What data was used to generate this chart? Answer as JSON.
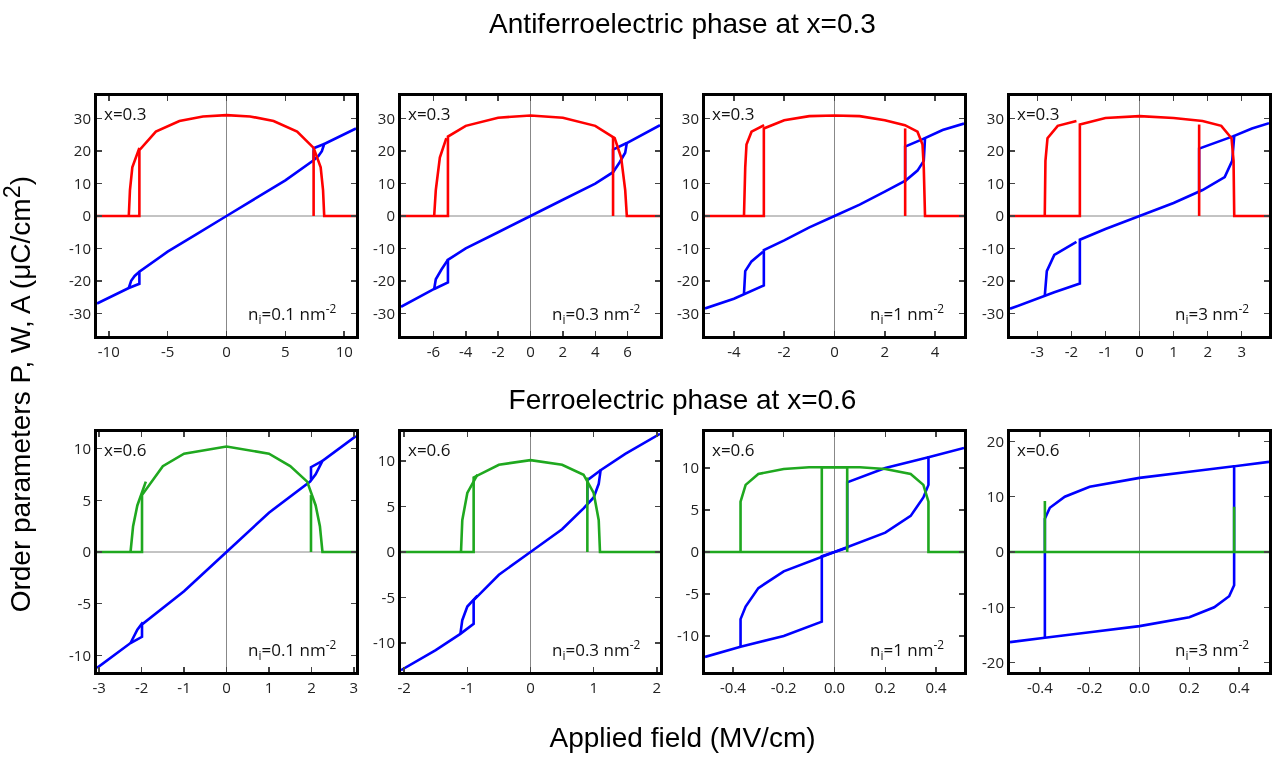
{
  "chart_data": [
    {
      "type": "line",
      "annotations": [
        "x=0.3",
        "n$_{i}$=0.1 nm$^{-2}$"
      ],
      "xlim": [
        -11,
        11
      ],
      "ylim": [
        -37,
        37
      ],
      "xticks": [
        -10,
        -5,
        0,
        5,
        10
      ],
      "yticks": [
        -30,
        -20,
        -10,
        0,
        10,
        20,
        30
      ],
      "ref_lines": [
        {
          "axis": "x",
          "value": 0,
          "color": "#888888"
        },
        {
          "axis": "y",
          "value": 0,
          "color": "#888888"
        }
      ],
      "series": [
        {
          "color": "#0000ff",
          "x": [
            -11,
            -8.3,
            -7.4,
            -7.4,
            -5,
            -2.5,
            0,
            2.5,
            5,
            7.4,
            7.8,
            8.1,
            8.3,
            11
          ],
          "values": [
            -27,
            -22.2,
            -20.9,
            -17.2,
            -11,
            -5.5,
            0,
            5.5,
            11,
            17.2,
            18.5,
            20,
            22.2,
            27
          ]
        },
        {
          "color": "#0000ff",
          "x": [
            -8.3,
            -8.1,
            -7.8,
            -7.4,
            0,
            7.4,
            7.4,
            8.3
          ],
          "values": [
            -22.2,
            -20,
            -18.5,
            -17.2,
            null,
            17.2,
            20.9,
            22.2
          ]
        },
        {
          "color": "#ff0000",
          "x": [
            -11,
            -7.4,
            -7.4,
            -6,
            -4,
            -2,
            0,
            2,
            4,
            6,
            7.4,
            8,
            8.2,
            8.3,
            11
          ],
          "values": [
            0,
            0,
            20.3,
            26,
            29.3,
            30.7,
            31.1,
            30.7,
            29.3,
            26,
            21,
            15,
            8,
            0,
            0
          ]
        },
        {
          "color": "#ff0000",
          "x": [
            -8.3,
            -8.2,
            -8,
            -7.4,
            0,
            7.4,
            7.4
          ],
          "values": [
            0,
            8,
            15,
            21,
            null,
            20.3,
            0
          ]
        }
      ]
    },
    {
      "type": "line",
      "annotations": [
        "x=0.3",
        "n$_{i}$=0.3 nm$^{-2}$"
      ],
      "xlim": [
        -8,
        8
      ],
      "ylim": [
        -37,
        37
      ],
      "xticks": [
        -6,
        -4,
        -2,
        0,
        2,
        4,
        6
      ],
      "yticks": [
        -30,
        -20,
        -10,
        0,
        10,
        20,
        30
      ],
      "ref_lines": [
        {
          "axis": "x",
          "value": 0,
          "color": "#888888"
        },
        {
          "axis": "y",
          "value": 0,
          "color": "#888888"
        }
      ],
      "series": [
        {
          "color": "#0000ff",
          "x": [
            -8,
            -5.95,
            -5.1,
            -5.1,
            -4,
            -2,
            0,
            2,
            4,
            5.1,
            5.5,
            5.85,
            5.95,
            8
          ],
          "values": [
            -28,
            -22.5,
            -20.5,
            -13.5,
            -10,
            -5,
            0,
            5,
            10,
            13.5,
            16.5,
            19.5,
            22.5,
            28
          ]
        },
        {
          "color": "#0000ff",
          "x": [
            -5.95,
            -5.85,
            -5.5,
            -5.1,
            0,
            5.1,
            5.1,
            5.95
          ],
          "values": [
            -22.5,
            -19.5,
            -16.5,
            -13.5,
            null,
            13.5,
            20.5,
            22.5
          ]
        },
        {
          "color": "#ff0000",
          "x": [
            -8,
            -5.1,
            -5.1,
            -4,
            -2,
            0,
            2,
            4,
            5.2,
            5.6,
            5.85,
            5.95,
            8
          ],
          "values": [
            0,
            0,
            24.5,
            27.8,
            30.3,
            31,
            30.3,
            27.8,
            24,
            18,
            8,
            0,
            0
          ]
        },
        {
          "color": "#ff0000",
          "x": [
            -5.95,
            -5.85,
            -5.6,
            -5.2,
            0,
            5.1,
            5.1
          ],
          "values": [
            0,
            8,
            18,
            24,
            null,
            24.5,
            0
          ]
        }
      ]
    },
    {
      "type": "line",
      "annotations": [
        "x=0.3",
        "n$_{i}$=1 nm$^{-2}$"
      ],
      "xlim": [
        -5.15,
        5.15
      ],
      "ylim": [
        -37,
        37
      ],
      "xticks": [
        -4,
        -2,
        0,
        2,
        4
      ],
      "yticks": [
        -30,
        -20,
        -10,
        0,
        10,
        20,
        30
      ],
      "ref_lines": [
        {
          "axis": "x",
          "value": 0,
          "color": "#888888"
        },
        {
          "axis": "y",
          "value": 0,
          "color": "#888888"
        }
      ],
      "series": [
        {
          "color": "#0000ff",
          "x": [
            -5.15,
            -4,
            -2.81,
            -2.81,
            -2,
            -1,
            0,
            1,
            2,
            2.84,
            3.3,
            3.55,
            3.6,
            4.3,
            5.15
          ],
          "values": [
            -28.5,
            -25.5,
            -21.4,
            -10.5,
            -7.5,
            -3.5,
            0,
            3.5,
            7.5,
            11,
            14,
            17,
            24,
            26.5,
            28.5
          ]
        },
        {
          "color": "#0000ff",
          "x": [
            -3.6,
            -3.55,
            -3.3,
            -2.84,
            0,
            2.81,
            2.81,
            3.6
          ],
          "values": [
            -24,
            -17,
            -14,
            -11,
            null,
            10.5,
            21.4,
            24
          ]
        },
        {
          "color": "#ff0000",
          "x": [
            -5.15,
            -2.81,
            -2.81,
            -2,
            -1,
            0,
            1,
            2,
            2.8,
            3.3,
            3.5,
            3.55,
            3.6,
            5.15
          ],
          "values": [
            0,
            0,
            27,
            29.5,
            30.8,
            31,
            30.8,
            29.5,
            28,
            26,
            22,
            15,
            0,
            0
          ]
        },
        {
          "color": "#ff0000",
          "x": [
            -3.6,
            -3.55,
            -3.5,
            -3.3,
            -2.8,
            0,
            2.81,
            2.81
          ],
          "values": [
            0,
            15,
            22,
            26,
            28,
            null,
            27,
            0
          ]
        }
      ]
    },
    {
      "type": "line",
      "annotations": [
        "x=0.3",
        "n$_{i}$=3 nm$^{-2}$"
      ],
      "xlim": [
        -3.8,
        3.8
      ],
      "ylim": [
        -37,
        37
      ],
      "xticks": [
        -3,
        -2,
        -1,
        0,
        1,
        2,
        3
      ],
      "yticks": [
        -30,
        -20,
        -10,
        0,
        10,
        20,
        30
      ],
      "ref_lines": [
        {
          "axis": "x",
          "value": 0,
          "color": "#888888"
        },
        {
          "axis": "y",
          "value": 0,
          "color": "#888888"
        }
      ],
      "series": [
        {
          "color": "#0000ff",
          "x": [
            -3.8,
            -2.5,
            -1.75,
            -1.75,
            -1,
            0,
            1,
            1.85,
            2.5,
            2.72,
            2.78,
            3.3,
            3.8
          ],
          "values": [
            -28.6,
            -23.5,
            -20.8,
            -7.3,
            -4,
            0,
            4,
            8,
            12,
            17,
            24.7,
            27,
            28.6
          ]
        },
        {
          "color": "#0000ff",
          "x": [
            -2.78,
            -2.72,
            -2.5,
            -1.85,
            0,
            1.75,
            1.75,
            2.78
          ],
          "values": [
            -24.7,
            -17,
            -12,
            -8,
            null,
            7.3,
            20.8,
            24.7
          ]
        },
        {
          "color": "#ff0000",
          "x": [
            -3.8,
            -1.75,
            -1.75,
            -1,
            0,
            1,
            1.85,
            2.4,
            2.7,
            2.76,
            2.78,
            3.8
          ],
          "values": [
            0,
            0,
            28.2,
            30.2,
            30.8,
            30.2,
            29.3,
            27.8,
            24,
            17,
            0,
            0
          ]
        },
        {
          "color": "#ff0000",
          "x": [
            -2.78,
            -2.76,
            -2.7,
            -2.4,
            -1.85,
            0,
            1.75,
            1.75
          ],
          "values": [
            0,
            17,
            24,
            27.8,
            29.3,
            null,
            28.2,
            0
          ]
        }
      ]
    },
    {
      "type": "line",
      "annotations": [
        "x=0.6",
        "n$_{i}$=0.1 nm$^{-2}$"
      ],
      "xlim": [
        -3.05,
        3.05
      ],
      "ylim": [
        -11.6,
        11.6
      ],
      "xticks": [
        -3,
        -2,
        -1,
        0,
        1,
        2,
        3
      ],
      "yticks": [
        -10,
        -5,
        0,
        5,
        10
      ],
      "ref_lines": [
        {
          "axis": "x",
          "value": 0,
          "color": "#888888"
        },
        {
          "axis": "y",
          "value": 0,
          "color": "#888888"
        }
      ],
      "series": [
        {
          "color": "#0000ff",
          "x": [
            -3.05,
            -2.26,
            -1.99,
            -1.99,
            -1,
            0,
            1,
            1.97,
            2.1,
            2.26,
            3.05
          ],
          "values": [
            -11.2,
            -8.8,
            -8.2,
            -7,
            -3.8,
            0,
            3.8,
            6.8,
            7.5,
            8.8,
            11.2
          ]
        },
        {
          "color": "#0000ff",
          "x": [
            -2.26,
            -2.1,
            -1.97,
            0,
            1.99,
            1.99,
            2.26
          ],
          "values": [
            -8.8,
            -7.5,
            -6.8,
            null,
            7,
            8.2,
            8.8
          ]
        },
        {
          "color": "#1fa81f",
          "x": [
            -3.05,
            -1.99,
            -1.99,
            -1.5,
            -1,
            0,
            1,
            1.5,
            1.9,
            2.1,
            2.2,
            2.26,
            3.05
          ],
          "values": [
            0,
            0,
            5.5,
            8.3,
            9.5,
            10.2,
            9.5,
            8.3,
            6.8,
            4.5,
            2.5,
            0,
            0
          ]
        },
        {
          "color": "#1fa81f",
          "x": [
            -2.26,
            -2.2,
            -2.1,
            -1.9,
            0,
            1.99,
            1.99
          ],
          "values": [
            0,
            2.5,
            4.5,
            6.8,
            null,
            5.5,
            0
          ]
        }
      ]
    },
    {
      "type": "line",
      "annotations": [
        "x=0.6",
        "n$_{i}$=0.3 nm$^{-2}$"
      ],
      "xlim": [
        -2.05,
        2.05
      ],
      "ylim": [
        -13.2,
        13.2
      ],
      "xticks": [
        -2,
        -1,
        0,
        1,
        2
      ],
      "yticks": [
        -10,
        -5,
        0,
        5,
        10
      ],
      "ref_lines": [
        {
          "axis": "x",
          "value": 0,
          "color": "#888888"
        },
        {
          "axis": "y",
          "value": 0,
          "color": "#888888"
        }
      ],
      "series": [
        {
          "color": "#0000ff",
          "x": [
            -2.05,
            -1.5,
            -1.11,
            -0.9,
            -0.9,
            -0.5,
            0,
            0.5,
            0.84,
            1,
            1.08,
            1.11,
            1.5,
            2.05
          ],
          "values": [
            -13,
            -10.8,
            -9,
            -7.9,
            -5.3,
            -2.5,
            0,
            2.5,
            4.8,
            6,
            7.5,
            9,
            10.8,
            13
          ]
        },
        {
          "color": "#0000ff",
          "x": [
            -1.11,
            -1.08,
            -1,
            -0.84,
            0,
            0.9,
            0.9,
            1.11
          ],
          "values": [
            -9,
            -7.5,
            -6,
            -4.8,
            null,
            5.3,
            7.9,
            9
          ]
        },
        {
          "color": "#1fa81f",
          "x": [
            -2.05,
            -0.9,
            -0.9,
            -0.5,
            0,
            0.5,
            0.84,
            1,
            1.08,
            1.1,
            2.05
          ],
          "values": [
            0,
            0,
            8.2,
            9.6,
            10.1,
            9.6,
            8.5,
            6.5,
            3.5,
            0,
            0
          ]
        },
        {
          "color": "#1fa81f",
          "x": [
            -1.1,
            -1.08,
            -1,
            -0.84,
            0,
            0.9,
            0.9
          ],
          "values": [
            0,
            3.5,
            6.5,
            8.5,
            null,
            8.2,
            0
          ]
        }
      ]
    },
    {
      "type": "line",
      "annotations": [
        "x=0.6",
        "n$_{i}$=1 nm$^{-2}$"
      ],
      "xlim": [
        -0.51,
        0.51
      ],
      "ylim": [
        -14.3,
        14.3
      ],
      "xticks": [
        -0.4,
        -0.2,
        {
          "value": 0,
          "label": "0.0"
        },
        0.2,
        0.4
      ],
      "yticks": [
        -10,
        -5,
        0,
        5,
        10
      ],
      "ref_lines": [
        {
          "axis": "x",
          "value": 0,
          "color": "#888888"
        },
        {
          "axis": "y",
          "value": 0,
          "color": "#888888"
        }
      ],
      "series": [
        {
          "color": "#0000ff",
          "x": [
            -0.51,
            -0.37,
            -0.2,
            -0.05,
            -0.05,
            0,
            0.2,
            0.3,
            0.35,
            0.37,
            0.37,
            0.51
          ],
          "values": [
            -12.5,
            -11.3,
            -10,
            -8.3,
            -0.5,
            0,
            2.3,
            4.3,
            6.5,
            8,
            11.3,
            12.4
          ]
        },
        {
          "color": "#0000ff",
          "x": [
            -0.37,
            -0.37,
            -0.35,
            -0.3,
            -0.2,
            0,
            0.05,
            0.05,
            0.2,
            0.37
          ],
          "values": [
            -11.3,
            -8,
            -6.5,
            -4.3,
            -2.3,
            0,
            0.5,
            8.3,
            10,
            11.3
          ]
        },
        {
          "color": "#1fa81f",
          "x": [
            -0.51,
            -0.05,
            -0.05,
            0.1,
            0.2,
            0.3,
            0.35,
            0.37,
            0.37,
            0.51
          ],
          "values": [
            0,
            0,
            10.1,
            10.1,
            9.9,
            9.3,
            8,
            6,
            0,
            0
          ]
        },
        {
          "color": "#1fa81f",
          "x": [
            -0.37,
            -0.37,
            -0.35,
            -0.3,
            -0.2,
            -0.1,
            0.05,
            0.05
          ],
          "values": [
            0,
            6,
            8,
            9.3,
            9.9,
            10.1,
            10.1,
            0
          ]
        }
      ]
    },
    {
      "type": "line",
      "annotations": [
        "x=0.6",
        "n$_{i}$=3 nm$^{-2}$"
      ],
      "xlim": [
        -0.52,
        0.52
      ],
      "ylim": [
        -21.7,
        21.7
      ],
      "xticks": [
        -0.4,
        -0.2,
        {
          "value": 0,
          "label": "0.0"
        },
        0.2,
        0.4
      ],
      "yticks": [
        -20,
        -10,
        0,
        10,
        20
      ],
      "ref_lines": [
        {
          "axis": "x",
          "value": 0,
          "color": "#888888"
        }
      ],
      "series": [
        {
          "color": "#0000ff",
          "x": [
            -0.52,
            -0.38,
            -0.2,
            0,
            0.2,
            0.3,
            0.36,
            0.38,
            0.38,
            0.52
          ],
          "values": [
            -16.3,
            -15.5,
            -14.5,
            -13.4,
            -11.8,
            -10,
            -8,
            -6,
            15.5,
            16.3
          ]
        },
        {
          "color": "#0000ff",
          "x": [
            -0.38,
            -0.38,
            -0.36,
            -0.3,
            -0.2,
            0,
            0.2,
            0.38
          ],
          "values": [
            -15.5,
            6,
            8,
            10,
            11.8,
            13.4,
            14.5,
            15.5
          ]
        },
        {
          "color": "#1fa81f",
          "x": [
            -0.52,
            -0.38,
            -0.38,
            -0.38,
            0.38,
            0.38,
            0.38,
            0.52
          ],
          "values": [
            0,
            0,
            9.2,
            0,
            0,
            8.2,
            0,
            0
          ]
        }
      ]
    },
    {
      "type": "other",
      "title": "Antiferroelectric phase at x=0.3",
      "subtitle": "Ferroelectric phase at x=0.6",
      "xlabel": "Applied field (MV/cm)",
      "ylabel": "Order parameters P, W, A (μC/cm$^{2}$)"
    }
  ]
}
